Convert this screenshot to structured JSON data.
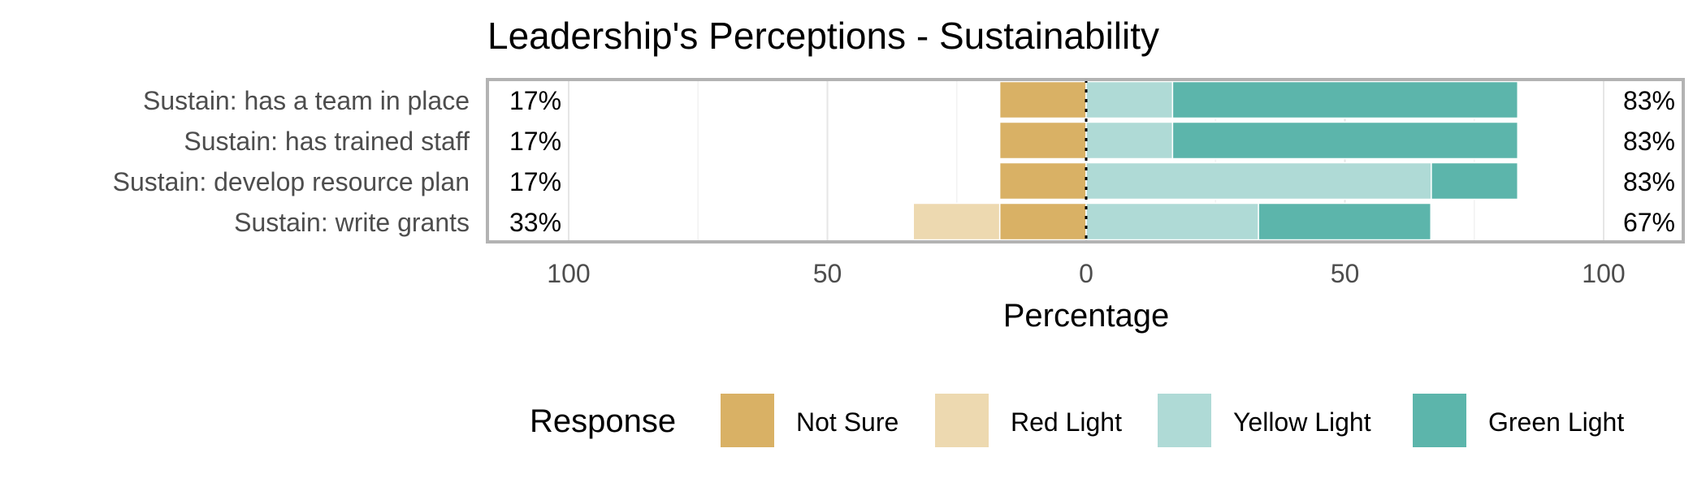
{
  "chart_data": {
    "type": "bar",
    "orientation": "horizontal",
    "stacking": "diverging",
    "title": "Leadership's Perceptions - Sustainability",
    "xlabel": "Percentage",
    "ylabel": "",
    "xlim": [
      -100,
      100
    ],
    "x_ticks": [
      {
        "value": -100,
        "label": "100"
      },
      {
        "value": -50,
        "label": "50"
      },
      {
        "value": 0,
        "label": "0"
      },
      {
        "value": 50,
        "label": "50"
      },
      {
        "value": 100,
        "label": "100"
      }
    ],
    "categories": [
      "Sustain: has a team in place",
      "Sustain: has trained staff",
      "Sustain: develop resource plan",
      "Sustain: write grants"
    ],
    "series": [
      {
        "name": "Not Sure",
        "side": "negative",
        "color": "#D9B165",
        "values": [
          16.7,
          16.7,
          16.7,
          16.7
        ]
      },
      {
        "name": "Red Light",
        "side": "negative",
        "color": "#EDD9B0",
        "values": [
          0,
          0,
          0,
          16.7
        ]
      },
      {
        "name": "Yellow Light",
        "side": "positive",
        "color": "#AFDAD6",
        "values": [
          16.7,
          16.7,
          66.7,
          33.3
        ]
      },
      {
        "name": "Green Light",
        "side": "positive",
        "color": "#5CB5AB",
        "values": [
          66.7,
          66.7,
          16.7,
          33.3
        ]
      }
    ],
    "left_labels": [
      "17%",
      "17%",
      "17%",
      "33%"
    ],
    "right_labels": [
      "83%",
      "83%",
      "83%",
      "67%"
    ],
    "legend": {
      "title": "Response",
      "position": "bottom"
    },
    "grid": true
  }
}
